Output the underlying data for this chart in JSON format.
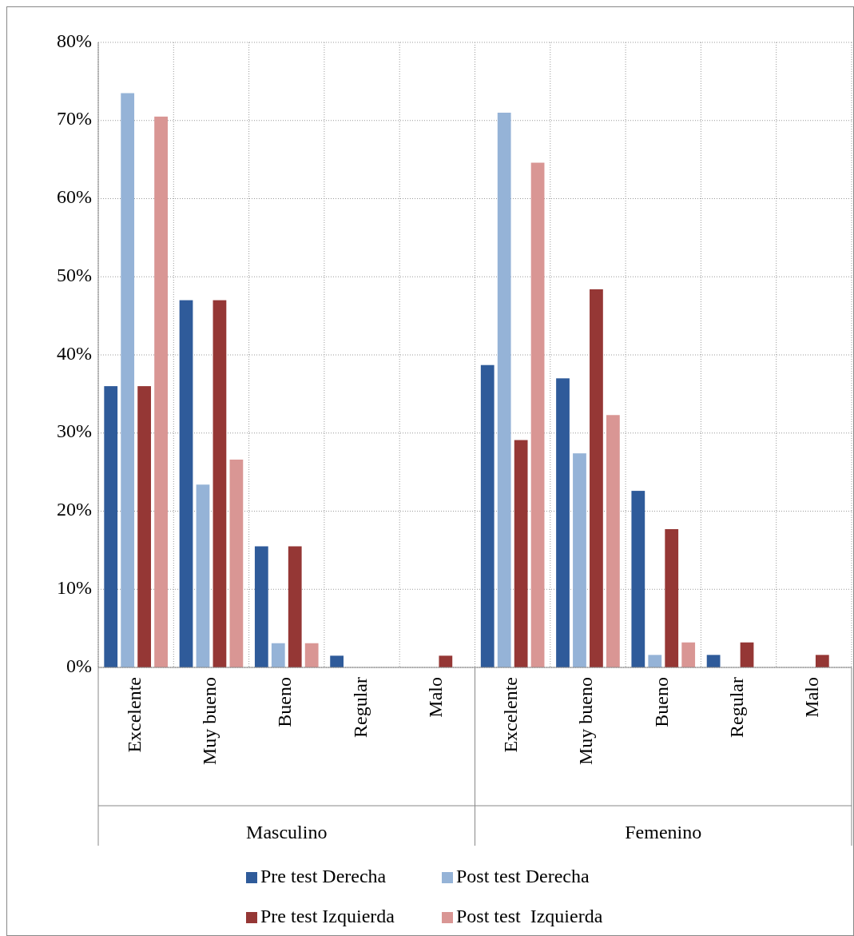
{
  "chart_data": {
    "type": "bar",
    "categories": [
      "Excelente",
      "Muy bueno",
      "Bueno",
      "Regular",
      "Malo",
      "Excelente",
      "Muy bueno",
      "Bueno",
      "Regular",
      "Malo"
    ],
    "series": [
      {
        "name": "Pre test Derecha",
        "color": "#2f5b9a",
        "values": [
          36,
          47,
          15.5,
          1.5,
          0,
          38.7,
          37,
          22.6,
          1.6,
          0
        ]
      },
      {
        "name": "Post test Derecha",
        "color": "#95b3d7",
        "values": [
          73.5,
          23.4,
          3.1,
          0,
          0,
          71,
          27.4,
          1.6,
          0,
          0
        ]
      },
      {
        "name": "Pre test Izquierda",
        "color": "#953735",
        "values": [
          36,
          47,
          15.5,
          0,
          1.5,
          29.1,
          48.4,
          17.7,
          3.2,
          1.6
        ]
      },
      {
        "name": "Post test  Izquierda",
        "color": "#d99694",
        "values": [
          70.5,
          26.6,
          3.1,
          0,
          0,
          64.6,
          32.3,
          3.2,
          0,
          0
        ]
      }
    ],
    "ylim": [
      0,
      80
    ],
    "yticks": [
      {
        "value": 0,
        "label": "0%"
      },
      {
        "value": 10,
        "label": "10%"
      },
      {
        "value": 20,
        "label": "20%"
      },
      {
        "value": 30,
        "label": "30%"
      },
      {
        "value": 40,
        "label": "40%"
      },
      {
        "value": 50,
        "label": "50%"
      },
      {
        "value": 60,
        "label": "60%"
      },
      {
        "value": 70,
        "label": "70%"
      },
      {
        "value": 80,
        "label": "80%"
      }
    ],
    "grid": true,
    "legend": "bottom",
    "annotations": [
      "Masculino",
      "Femenino"
    ]
  }
}
